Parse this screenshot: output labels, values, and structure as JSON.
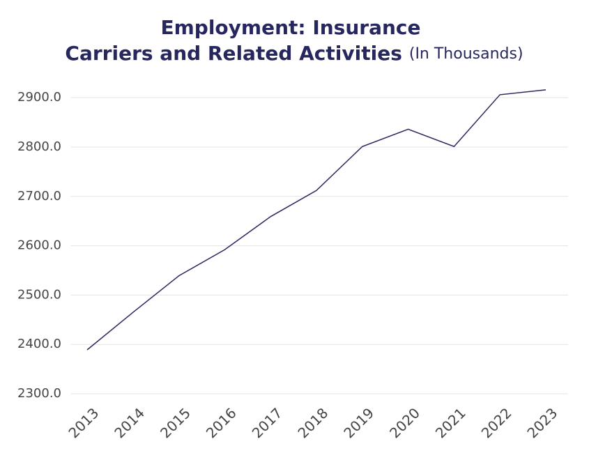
{
  "chart_data": {
    "type": "line",
    "title": [
      "Employment: Insurance",
      "Carriers and Related Activities"
    ],
    "subtitle": "(In Thousands)",
    "categories": [
      "2013",
      "2014",
      "2015",
      "2016",
      "2017",
      "2018",
      "2019",
      "2020",
      "2021",
      "2022",
      "2023"
    ],
    "values": [
      2389,
      2465,
      2539,
      2592,
      2659,
      2712,
      2801,
      2836,
      2801,
      2906,
      2916
    ],
    "color": "#27275f",
    "ylim": [
      2300,
      2920
    ],
    "yticks": [
      {
        "value": 2300,
        "label": "2300.0"
      },
      {
        "value": 2400,
        "label": "2400.0"
      },
      {
        "value": 2500,
        "label": "2500.0"
      },
      {
        "value": 2600,
        "label": "2600.0"
      },
      {
        "value": 2700,
        "label": "2700.0"
      },
      {
        "value": 2800,
        "label": "2800.0"
      },
      {
        "value": 2900,
        "label": "2900.0"
      }
    ],
    "grid": true
  }
}
